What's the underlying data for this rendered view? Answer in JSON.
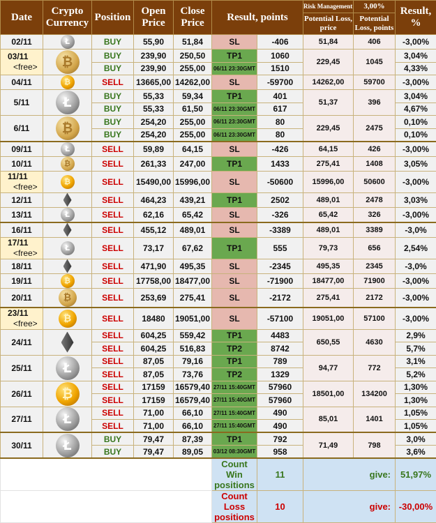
{
  "header": {
    "date": "Date",
    "crypto": "Crypto Currency",
    "position": "Position",
    "open": "Open Price",
    "close": "Close Price",
    "result_points": "Result, points",
    "risk_label": "Risk Management:",
    "risk_value": "3,00%",
    "pot_loss_price": "Potential Loss, price",
    "pot_loss_points": "Potential Loss, points",
    "result_pct": "Result, %"
  },
  "colors": {
    "header": "#7b3f0b",
    "sl": "#e6b8af",
    "tp": "#6aa84f",
    "buy": "#38761d",
    "sell": "#cc0000",
    "free": "#fff2cc",
    "summary": "#cfe2f3"
  },
  "rows": [
    {
      "date": "02/11",
      "coin": "ltc",
      "pl_price": "51,84",
      "pl_points": "406",
      "subs": [
        {
          "pos": "BUY",
          "open": "55,90",
          "close": "51,84",
          "res": "SL",
          "pts": "-406",
          "pct": "-3,00%"
        }
      ]
    },
    {
      "date": "03/11",
      "free": "<free>",
      "coin": "bch",
      "pl_price": "229,45",
      "pl_points": "1045",
      "subs": [
        {
          "pos": "BUY",
          "open": "239,90",
          "close": "250,50",
          "res": "TP1",
          "pts": "1060",
          "pct": "3,04%"
        },
        {
          "pos": "BUY",
          "open": "239,90",
          "close": "255,00",
          "res": "06/11 23:30GMT",
          "pts": "1510",
          "pct": "4,33%"
        }
      ]
    },
    {
      "date": "04/11",
      "coin": "btc",
      "pl_price": "14262,00",
      "pl_points": "59700",
      "subs": [
        {
          "pos": "SELL",
          "open": "13665,00",
          "close": "14262,00",
          "res": "SL",
          "pts": "-59700",
          "pct": "-3,00%"
        }
      ]
    },
    {
      "date": "5/11",
      "coin": "ltc",
      "pl_price": "51,37",
      "pl_points": "396",
      "subs": [
        {
          "pos": "BUY",
          "open": "55,33",
          "close": "59,34",
          "res": "TP1",
          "pts": "401",
          "pct": "3,04%"
        },
        {
          "pos": "BUY",
          "open": "55,33",
          "close": "61,50",
          "res": "06/11 23:30GMT",
          "pts": "617",
          "pct": "4,67%"
        }
      ]
    },
    {
      "date": "6/11",
      "coin": "bch",
      "pl_price": "229,45",
      "pl_points": "2475",
      "subs": [
        {
          "pos": "BUY",
          "open": "254,20",
          "close": "255,00",
          "res": "06/11 23:30GMT",
          "pts": "80",
          "pct": "0,10%"
        },
        {
          "pos": "BUY",
          "open": "254,20",
          "close": "255,00",
          "res": "06/11 23:30GMT",
          "pts": "80",
          "pct": "0,10%"
        }
      ]
    },
    {
      "date": "09/11",
      "coin": "ltc",
      "sep": true,
      "pl_price": "64,15",
      "pl_points": "426",
      "subs": [
        {
          "pos": "SELL",
          "open": "59,89",
          "close": "64,15",
          "res": "SL",
          "pts": "-426",
          "pct": "-3,00%"
        }
      ]
    },
    {
      "date": "10/11",
      "coin": "bch",
      "pl_price": "275,41",
      "pl_points": "1408",
      "subs": [
        {
          "pos": "SELL",
          "open": "261,33",
          "close": "247,00",
          "res": "TP1",
          "pts": "1433",
          "pct": "3,05%"
        }
      ]
    },
    {
      "date": "11/11",
      "free": "<free>",
      "coin": "btc",
      "pl_price": "15996,00",
      "pl_points": "50600",
      "subs": [
        {
          "pos": "SELL",
          "open": "15490,00",
          "close": "15996,00",
          "res": "SL",
          "pts": "-50600",
          "pct": "-3,00%"
        }
      ]
    },
    {
      "date": "12/11",
      "coin": "eth",
      "pl_price": "489,01",
      "pl_points": "2478",
      "subs": [
        {
          "pos": "SELL",
          "open": "464,23",
          "close": "439,21",
          "res": "TP1",
          "pts": "2502",
          "pct": "3,03%"
        }
      ]
    },
    {
      "date": "13/11",
      "coin": "ltc",
      "pl_price": "65,42",
      "pl_points": "326",
      "subs": [
        {
          "pos": "SELL",
          "open": "62,16",
          "close": "65,42",
          "res": "SL",
          "pts": "-326",
          "pct": "-3,00%"
        }
      ]
    },
    {
      "date": "16/11",
      "coin": "eth",
      "sep": true,
      "pl_price": "489,01",
      "pl_points": "3389",
      "subs": [
        {
          "pos": "SELL",
          "open": "455,12",
          "close": "489,01",
          "res": "SL",
          "pts": "-3389",
          "pct": "-3,0%"
        }
      ]
    },
    {
      "date": "17/11",
      "free": "<free>",
      "coin": "ltc",
      "pl_price": "79,73",
      "pl_points": "656",
      "subs": [
        {
          "pos": "SELL",
          "open": "73,17",
          "close": "67,62",
          "res": "TP1",
          "pts": "555",
          "pct": "2,54%"
        }
      ]
    },
    {
      "date": "18/11",
      "coin": "eth",
      "pl_price": "495,35",
      "pl_points": "2345",
      "subs": [
        {
          "pos": "SELL",
          "open": "471,90",
          "close": "495,35",
          "res": "SL",
          "pts": "-2345",
          "pct": "-3,0%"
        }
      ]
    },
    {
      "date": "19/11",
      "coin": "btc",
      "pl_price": "18477,00",
      "pl_points": "71900",
      "subs": [
        {
          "pos": "SELL",
          "open": "17758,00",
          "close": "18477,00",
          "res": "SL",
          "pts": "-71900",
          "pct": "-3,00%"
        }
      ]
    },
    {
      "date": "20/11",
      "coin": "bch",
      "tall": true,
      "pl_price": "275,41",
      "pl_points": "2172",
      "subs": [
        {
          "pos": "SELL",
          "open": "253,69",
          "close": "275,41",
          "res": "SL",
          "pts": "-2172",
          "pct": "-3,00%"
        }
      ]
    },
    {
      "date": "23/11",
      "free": "<free>",
      "coin": "btc",
      "sep": true,
      "tall": true,
      "pl_price": "19051,00",
      "pl_points": "57100",
      "subs": [
        {
          "pos": "SELL",
          "open": "18480",
          "close": "19051,00",
          "res": "SL",
          "pts": "-57100",
          "pct": "-3,00%"
        }
      ]
    },
    {
      "date": "24/11",
      "coin": "eth",
      "pl_price": "650,55",
      "pl_points": "4630",
      "subs": [
        {
          "pos": "SELL",
          "open": "604,25",
          "close": "559,42",
          "res": "TP1",
          "pts": "4483",
          "pct": "2,9%"
        },
        {
          "pos": "SELL",
          "open": "604,25",
          "close": "516,83",
          "res": "TP2",
          "pts": "8742",
          "pct": "5,7%"
        }
      ]
    },
    {
      "date": "25/11",
      "coin": "ltc",
      "pl_price": "94,77",
      "pl_points": "772",
      "subs": [
        {
          "pos": "SELL",
          "open": "87,05",
          "close": "79,16",
          "res": "TP1",
          "pts": "789",
          "pct": "3,1%"
        },
        {
          "pos": "SELL",
          "open": "87,05",
          "close": "73,76",
          "res": "TP2",
          "pts": "1329",
          "pct": "5,2%"
        }
      ]
    },
    {
      "date": "26/11",
      "coin": "btc",
      "pl_price": "18501,00",
      "pl_points": "134200",
      "subs": [
        {
          "pos": "SELL",
          "open": "17159",
          "close": "16579,40",
          "res": "27/11 15:40GMT",
          "pts": "57960",
          "pct": "1,30%"
        },
        {
          "pos": "SELL",
          "open": "17159",
          "close": "16579,40",
          "res": "27/11 15:40GMT",
          "pts": "57960",
          "pct": "1,30%"
        }
      ]
    },
    {
      "date": "27/11",
      "coin": "ltc",
      "pl_price": "85,01",
      "pl_points": "1401",
      "subs": [
        {
          "pos": "SELL",
          "open": "71,00",
          "close": "66,10",
          "res": "27/11 15:40GMT",
          "pts": "490",
          "pct": "1,05%"
        },
        {
          "pos": "SELL",
          "open": "71,00",
          "close": "66,10",
          "res": "27/11 15:40GMT",
          "pts": "490",
          "pct": "1,05%"
        }
      ]
    },
    {
      "date": "30/11",
      "coin": "ltc",
      "sep": true,
      "pl_price": "71,49",
      "pl_points": "798",
      "subs": [
        {
          "pos": "BUY",
          "open": "79,47",
          "close": "87,39",
          "res": "TP1",
          "pts": "792",
          "pct": "3,0%"
        },
        {
          "pos": "BUY",
          "open": "79,47",
          "close": "89,05",
          "res": "03/12 08:30GMT",
          "pts": "958",
          "pct": "3,6%"
        }
      ]
    }
  ],
  "summary": {
    "win_label": "Count Win positions",
    "win_count": "11",
    "win_give": "give:",
    "win_pct": "51,97%",
    "loss_label": "Count Loss positions",
    "loss_count": "10",
    "loss_give": "give:",
    "loss_pct": "-30,00%"
  }
}
